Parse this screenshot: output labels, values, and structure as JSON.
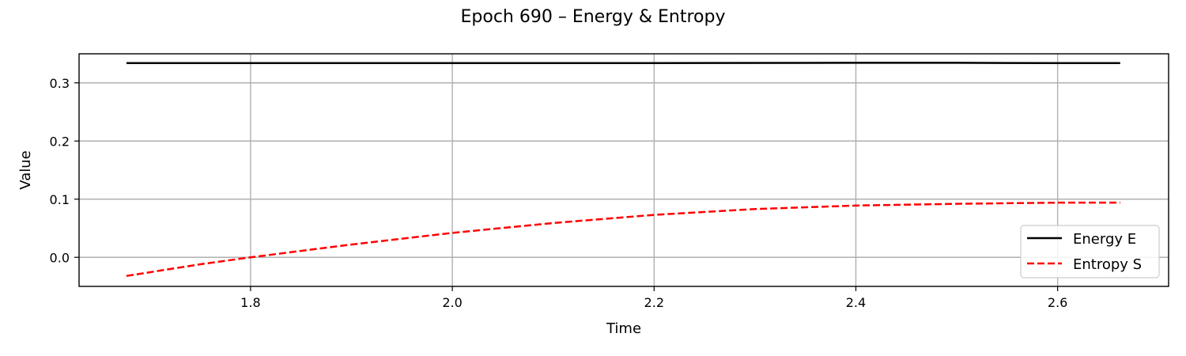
{
  "chart_data": {
    "type": "line",
    "title": "Epoch 690 – Energy & Entropy",
    "xlabel": "Time",
    "ylabel": "Value",
    "xlim": [
      1.63,
      2.71
    ],
    "ylim": [
      -0.05,
      0.35
    ],
    "xticks": [
      1.8,
      2.0,
      2.2,
      2.4,
      2.6
    ],
    "xtick_labels": [
      "1.8",
      "2.0",
      "2.2",
      "2.4",
      "2.6"
    ],
    "yticks": [
      0.0,
      0.1,
      0.2,
      0.3
    ],
    "ytick_labels": [
      "0.0",
      "0.1",
      "0.2",
      "0.3"
    ],
    "grid": true,
    "legend_position": "lower-right",
    "series": [
      {
        "name": "Energy E",
        "color": "#000000",
        "style": "solid",
        "x": [
          1.677,
          1.8,
          2.0,
          2.2,
          2.4,
          2.5,
          2.6,
          2.662
        ],
        "y": [
          0.334,
          0.334,
          0.334,
          0.334,
          0.3345,
          0.3345,
          0.334,
          0.334
        ]
      },
      {
        "name": "Entropy S",
        "color": "#ff0000",
        "style": "dashed",
        "x": [
          1.677,
          1.75,
          1.8,
          1.9,
          2.0,
          2.1,
          2.2,
          2.3,
          2.4,
          2.5,
          2.6,
          2.662
        ],
        "y": [
          -0.032,
          -0.012,
          0.0,
          0.022,
          0.042,
          0.059,
          0.073,
          0.083,
          0.089,
          0.092,
          0.094,
          0.094
        ]
      }
    ]
  }
}
